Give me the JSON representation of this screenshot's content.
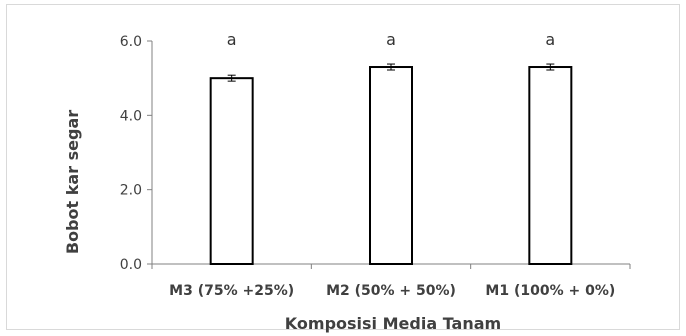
{
  "chart_data": {
    "type": "bar",
    "title": "",
    "xlabel": "Komposisi Media Tanam",
    "ylabel": "Bobot kar segar",
    "categories": [
      "M3 (75% +25%)",
      "M2 (50% + 50%)",
      "M1 (100% + 0%)"
    ],
    "values": [
      5.0,
      5.3,
      5.3
    ],
    "errors": [
      0.08,
      0.08,
      0.08
    ],
    "annotations": [
      "a",
      "a",
      "a"
    ],
    "ylim": [
      0,
      6.0
    ],
    "yticks": [
      "0.0",
      "2.0",
      "4.0",
      "6.0"
    ],
    "ytick_values": [
      0,
      2,
      4,
      6
    ],
    "grid": false,
    "legend": "none",
    "colors": {
      "bar_fill": "#ffffff",
      "bar_stroke": "#000000",
      "axis": "#808080",
      "text": "#404040"
    }
  }
}
